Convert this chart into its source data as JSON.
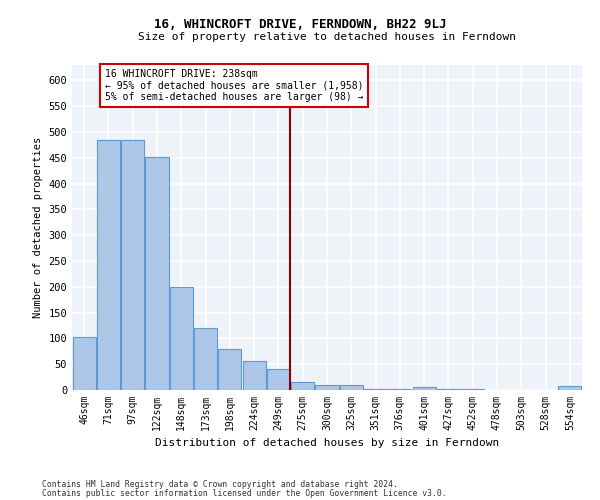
{
  "title": "16, WHINCROFT DRIVE, FERNDOWN, BH22 9LJ",
  "subtitle": "Size of property relative to detached houses in Ferndown",
  "xlabel": "Distribution of detached houses by size in Ferndown",
  "ylabel": "Number of detached properties",
  "categories": [
    "46sqm",
    "71sqm",
    "97sqm",
    "122sqm",
    "148sqm",
    "173sqm",
    "198sqm",
    "224sqm",
    "249sqm",
    "275sqm",
    "300sqm",
    "325sqm",
    "351sqm",
    "376sqm",
    "401sqm",
    "427sqm",
    "452sqm",
    "478sqm",
    "503sqm",
    "528sqm",
    "554sqm"
  ],
  "values": [
    103,
    485,
    485,
    452,
    200,
    120,
    80,
    57,
    40,
    15,
    10,
    10,
    1,
    1,
    5,
    1,
    1,
    0,
    0,
    0,
    7
  ],
  "bar_color": "#aec6e8",
  "bar_edgecolor": "#5b9bd5",
  "bar_linewidth": 0.8,
  "vline_color": "#8b0000",
  "annotation_line1": "16 WHINCROFT DRIVE: 238sqm",
  "annotation_line2": "← 95% of detached houses are smaller (1,958)",
  "annotation_line3": "5% of semi-detached houses are larger (98) →",
  "annotation_box_edgecolor": "#cc0000",
  "ylim": [
    0,
    630
  ],
  "yticks": [
    0,
    50,
    100,
    150,
    200,
    250,
    300,
    350,
    400,
    450,
    500,
    550,
    600
  ],
  "bg_color": "#eef2f9",
  "grid_color": "#ffffff",
  "footer1": "Contains HM Land Registry data © Crown copyright and database right 2024.",
  "footer2": "Contains public sector information licensed under the Open Government Licence v3.0."
}
